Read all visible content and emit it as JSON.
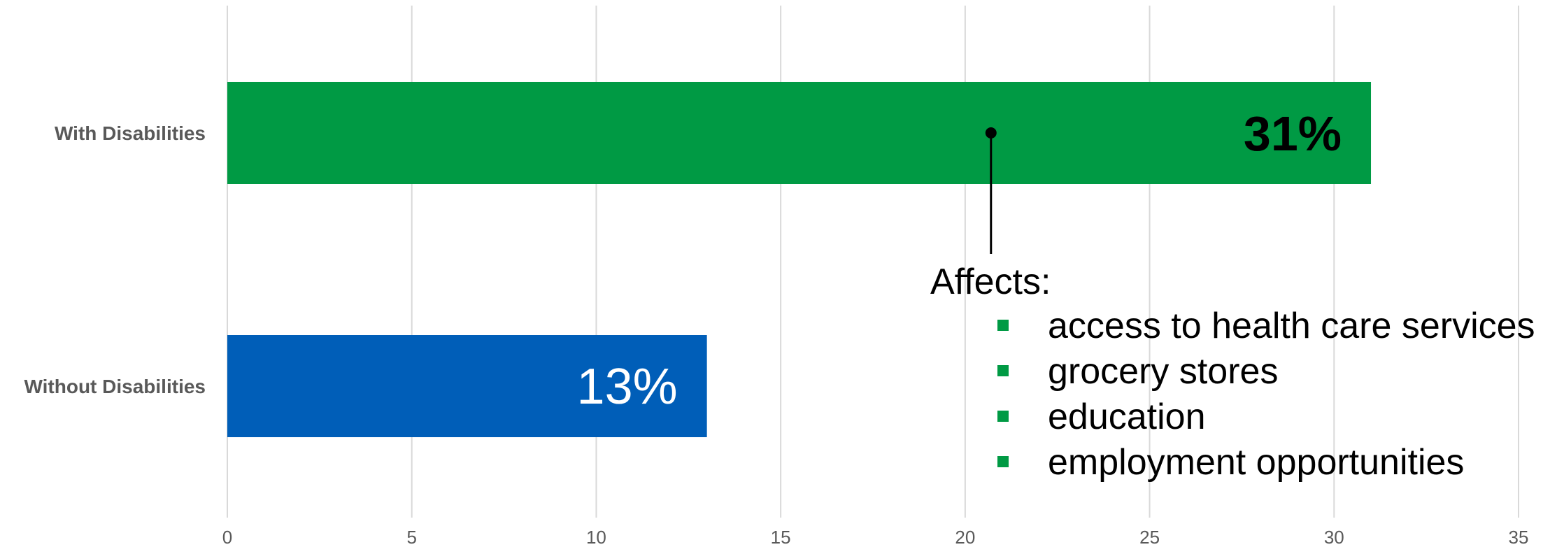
{
  "chart_data": {
    "type": "bar",
    "orientation": "horizontal",
    "categories": [
      "With Disabilities",
      "Without Disabilities"
    ],
    "values": [
      31,
      13
    ],
    "data_labels": [
      "31%",
      "13%"
    ],
    "colors": [
      "#009A44",
      "#005EB8"
    ],
    "label_colors": [
      "#000000",
      "#FFFFFF"
    ],
    "xlim": [
      0,
      35
    ],
    "x_ticks": [
      0,
      5,
      10,
      15,
      20,
      25,
      30,
      35
    ],
    "grid": true,
    "title": "",
    "xlabel": "",
    "ylabel": ""
  },
  "callout": {
    "heading": "Affects:",
    "anchor_value": 20.7,
    "anchor_category": "With Disabilities",
    "bullet_color": "#009A44",
    "items": [
      "access to health care services",
      "grocery stores",
      "education",
      "employment opportunities"
    ]
  }
}
